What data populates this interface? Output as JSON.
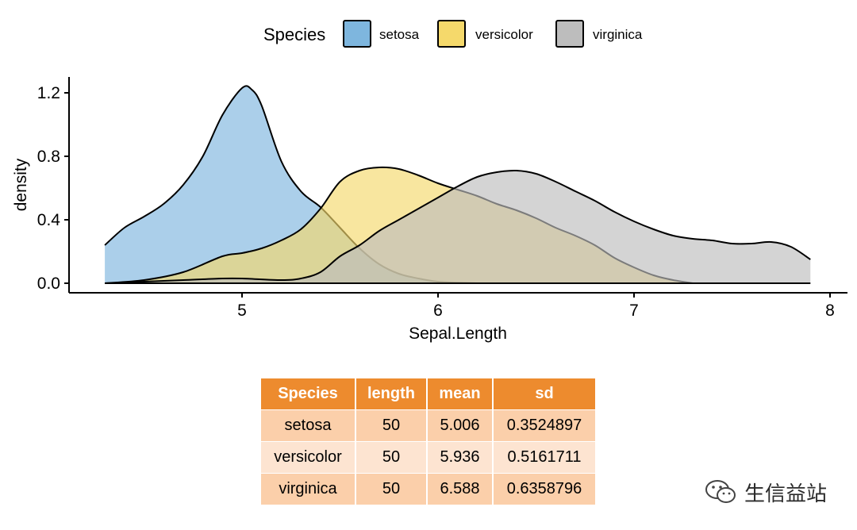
{
  "chart_data": {
    "type": "area",
    "subtype": "density",
    "xlabel": "Sepal.Length",
    "ylabel": "density",
    "xlim": [
      4.3,
      7.9
    ],
    "ylim": [
      0.0,
      1.25
    ],
    "xticks": [
      5,
      6,
      7,
      8
    ],
    "yticks": [
      0.0,
      0.4,
      0.8,
      1.2
    ],
    "ytick_labels": [
      "0.0",
      "0.4",
      "0.8",
      "1.2"
    ],
    "grid": false,
    "legend": {
      "title": "Species",
      "position": "top"
    },
    "series": [
      {
        "name": "setosa",
        "color": "#7EB6DE",
        "x": [
          4.3,
          4.4,
          4.5,
          4.6,
          4.7,
          4.8,
          4.9,
          5.0,
          5.05,
          5.1,
          5.2,
          5.3,
          5.4,
          5.5,
          5.6,
          5.7,
          5.8,
          5.9,
          6.0,
          6.1,
          6.2
        ],
        "y": [
          0.24,
          0.35,
          0.42,
          0.5,
          0.62,
          0.8,
          1.06,
          1.23,
          1.22,
          1.12,
          0.77,
          0.58,
          0.48,
          0.35,
          0.22,
          0.12,
          0.06,
          0.03,
          0.01,
          0.004,
          0.0
        ]
      },
      {
        "name": "versicolor",
        "color": "#F5D96B",
        "x": [
          4.3,
          4.5,
          4.7,
          4.9,
          5.0,
          5.1,
          5.2,
          5.3,
          5.4,
          5.5,
          5.6,
          5.7,
          5.8,
          5.9,
          6.0,
          6.1,
          6.2,
          6.3,
          6.4,
          6.5,
          6.6,
          6.7,
          6.8,
          6.9,
          7.0,
          7.1,
          7.2,
          7.3
        ],
        "y": [
          0.0,
          0.02,
          0.07,
          0.17,
          0.19,
          0.22,
          0.27,
          0.34,
          0.47,
          0.64,
          0.71,
          0.73,
          0.72,
          0.68,
          0.63,
          0.59,
          0.55,
          0.5,
          0.46,
          0.41,
          0.35,
          0.3,
          0.24,
          0.16,
          0.1,
          0.05,
          0.02,
          0.0
        ]
      },
      {
        "name": "virginica",
        "color": "#BDBDBD",
        "x": [
          4.3,
          4.5,
          4.7,
          4.9,
          5.0,
          5.2,
          5.3,
          5.4,
          5.5,
          5.6,
          5.7,
          5.8,
          5.9,
          6.0,
          6.1,
          6.2,
          6.3,
          6.4,
          6.5,
          6.6,
          6.7,
          6.8,
          6.9,
          7.0,
          7.1,
          7.2,
          7.3,
          7.4,
          7.5,
          7.6,
          7.7,
          7.8,
          7.9
        ],
        "y": [
          0.0,
          0.01,
          0.02,
          0.03,
          0.03,
          0.02,
          0.03,
          0.07,
          0.17,
          0.24,
          0.33,
          0.4,
          0.47,
          0.54,
          0.61,
          0.67,
          0.7,
          0.71,
          0.69,
          0.64,
          0.58,
          0.52,
          0.45,
          0.39,
          0.34,
          0.3,
          0.28,
          0.27,
          0.25,
          0.25,
          0.26,
          0.23,
          0.15
        ]
      }
    ]
  },
  "table": {
    "headers": [
      "Species",
      "length",
      "mean",
      "sd"
    ],
    "rows": [
      [
        "setosa",
        "50",
        "5.006",
        "0.3524897"
      ],
      [
        "versicolor",
        "50",
        "5.936",
        "0.5161711"
      ],
      [
        "virginica",
        "50",
        "6.588",
        "0.6358796"
      ]
    ],
    "header_color": "#ED8B2E",
    "row_colors": [
      "#FBCFAA",
      "#FDE4D1"
    ]
  },
  "watermark": {
    "text": "生信益站",
    "icon": "wechat-icon"
  }
}
